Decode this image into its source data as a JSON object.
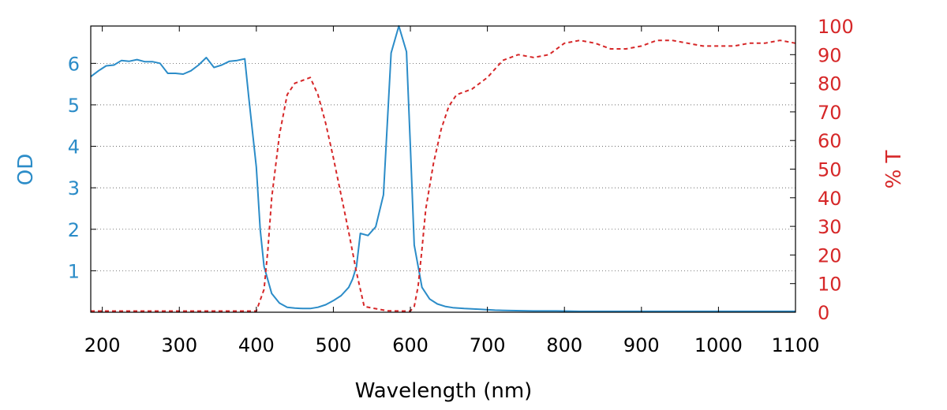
{
  "chart_data": {
    "type": "line",
    "xlabel": "Wavelength (nm)",
    "ylabel_left": "OD",
    "ylabel_right": "% T",
    "xlim": [
      185,
      1100
    ],
    "ylim_left": [
      0,
      6.9
    ],
    "ylim_right": [
      0,
      100
    ],
    "x_ticks": [
      "200",
      "300",
      "400",
      "500",
      "600",
      "700",
      "800",
      "900",
      "1000",
      "1100"
    ],
    "y_left_ticks": [
      "1",
      "2",
      "3",
      "4",
      "5",
      "6"
    ],
    "y_right_ticks": [
      "0",
      "10",
      "20",
      "30",
      "40",
      "50",
      "60",
      "70",
      "80",
      "90",
      "100"
    ],
    "grid": "horizontal dotted",
    "colors": {
      "od": "#2b8cc8",
      "transmission": "#d62728",
      "frame": "#000000"
    },
    "series": [
      {
        "axis": "left",
        "style": "solid",
        "x": [
          185,
          195,
          205,
          215,
          225,
          235,
          245,
          255,
          265,
          275,
          285,
          295,
          305,
          315,
          325,
          335,
          345,
          355,
          365,
          375,
          385,
          390,
          400,
          405,
          410,
          420,
          430,
          440,
          450,
          460,
          470,
          480,
          490,
          500,
          510,
          520,
          525,
          530,
          535,
          545,
          555,
          565,
          575,
          585,
          595,
          600,
          605,
          615,
          625,
          635,
          645,
          655,
          670,
          690,
          710,
          730,
          760,
          790,
          820,
          850,
          880,
          910,
          940,
          970,
          1000,
          1030,
          1060,
          1100
        ],
        "y": [
          5.68,
          5.82,
          5.94,
          5.96,
          6.07,
          6.05,
          6.09,
          6.04,
          6.04,
          6.0,
          5.76,
          5.76,
          5.74,
          5.82,
          5.96,
          6.14,
          5.9,
          5.96,
          6.05,
          6.07,
          6.11,
          5.2,
          3.5,
          2.0,
          1.1,
          0.45,
          0.22,
          0.12,
          0.1,
          0.09,
          0.09,
          0.12,
          0.18,
          0.28,
          0.4,
          0.6,
          0.8,
          1.1,
          1.9,
          1.85,
          2.06,
          2.83,
          6.25,
          6.9,
          6.28,
          4.0,
          1.62,
          0.6,
          0.32,
          0.2,
          0.14,
          0.11,
          0.09,
          0.07,
          0.05,
          0.04,
          0.03,
          0.03,
          0.02,
          0.02,
          0.02,
          0.02,
          0.02,
          0.02,
          0.02,
          0.02,
          0.02,
          0.02
        ]
      },
      {
        "axis": "right",
        "style": "dashed",
        "x": [
          185,
          300,
          400,
          410,
          415,
          420,
          430,
          440,
          450,
          460,
          470,
          480,
          490,
          500,
          510,
          520,
          530,
          540,
          550,
          570,
          590,
          600,
          605,
          610,
          615,
          620,
          630,
          640,
          650,
          660,
          680,
          700,
          720,
          740,
          760,
          780,
          800,
          820,
          840,
          860,
          880,
          900,
          920,
          940,
          960,
          980,
          1000,
          1020,
          1040,
          1060,
          1080,
          1100
        ],
        "y": [
          0.4,
          0.4,
          0.4,
          8,
          22,
          40,
          62,
          76,
          80,
          81,
          82,
          76,
          66,
          54,
          41,
          28,
          14,
          2,
          1.5,
          0.5,
          0.4,
          0.4,
          2,
          9,
          22,
          36,
          52,
          64,
          72,
          76,
          78,
          82,
          88,
          90,
          89,
          90,
          94,
          95,
          94,
          92,
          92,
          93,
          95,
          95,
          94,
          93,
          93,
          93,
          94,
          94,
          95,
          94
        ]
      }
    ]
  }
}
